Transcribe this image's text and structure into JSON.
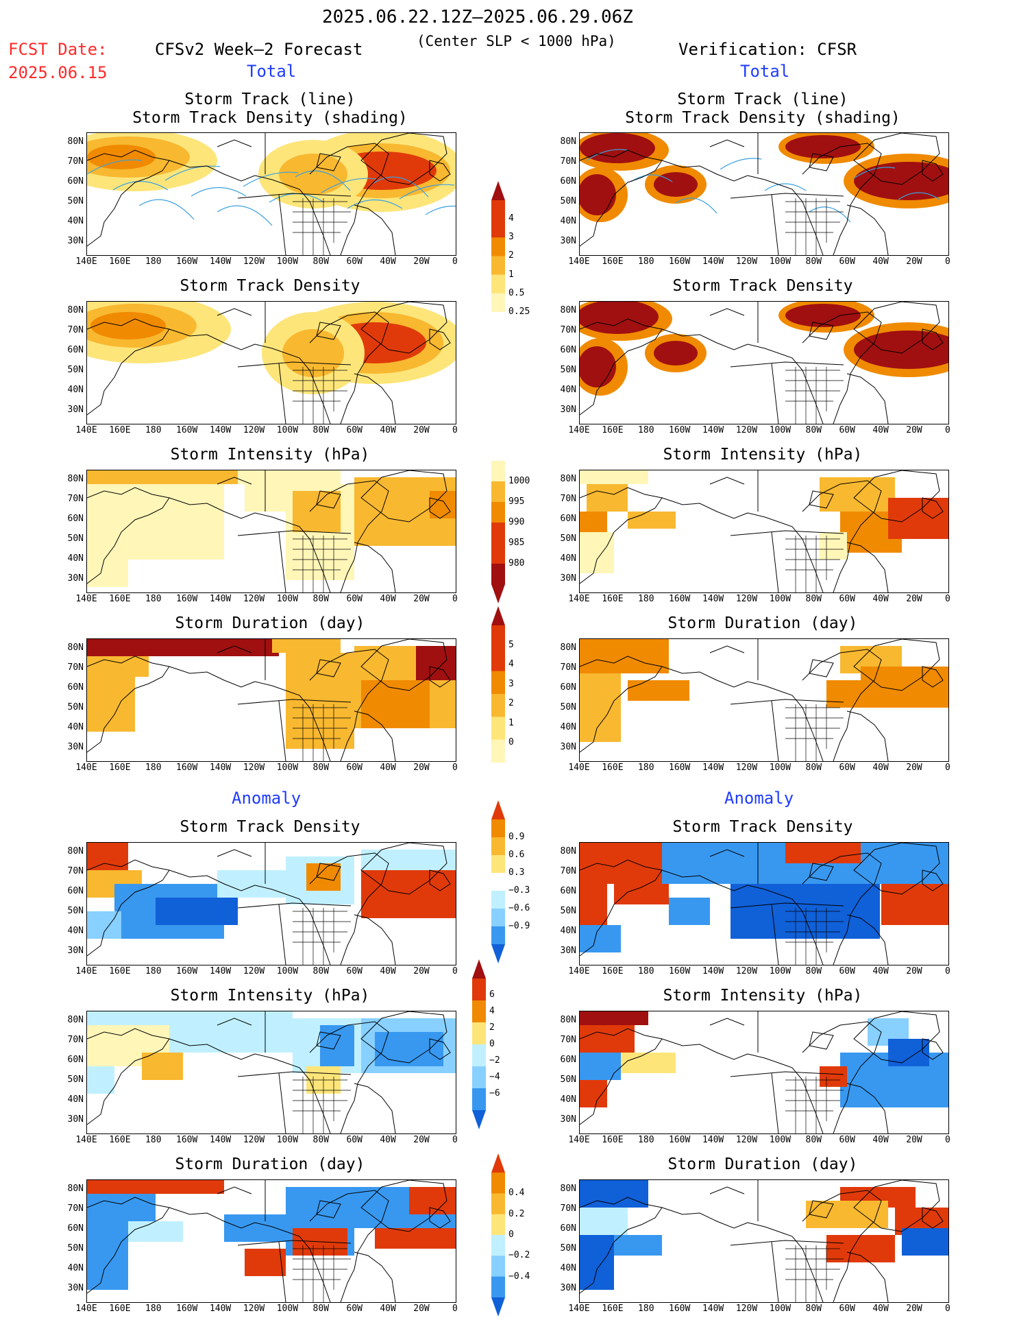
{
  "header": {
    "period": "2025.06.22.12Z–2025.06.29.06Z",
    "condition": "(Center SLP < 1000 hPa)",
    "fcst_label": "FCST Date:",
    "fcst_date": "2025.06.15",
    "model": "CFSv2 Week–2 Forecast",
    "verification": "Verification: CFSR",
    "total_label": "Total",
    "anomaly_label": "Anomaly"
  },
  "panel_titles": {
    "track_line": "Storm Track (line)",
    "track_density_shading": "Storm Track Density (shading)",
    "track_density": "Storm Track Density",
    "intensity": "Storm Intensity (hPa)",
    "duration": "Storm Duration (day)"
  },
  "lat_labels": [
    "80N",
    "70N",
    "60N",
    "50N",
    "40N",
    "30N"
  ],
  "lon_labels": [
    "140E",
    "160E",
    "180",
    "160W",
    "140W",
    "120W",
    "100W",
    "80W",
    "60W",
    "40W",
    "20W",
    "0"
  ],
  "colorbars": {
    "density": [
      "4",
      "3",
      "2",
      "1",
      "0.5",
      "0.25"
    ],
    "intensity": [
      "1000",
      "995",
      "990",
      "985",
      "980"
    ],
    "duration": [
      "5",
      "4",
      "3",
      "2",
      "1",
      "0"
    ],
    "density_anom": [
      "0.9",
      "0.6",
      "0.3",
      "−0.3",
      "−0.6",
      "−0.9"
    ],
    "intensity_anom": [
      "6",
      "4",
      "2",
      "0",
      "−2",
      "−4",
      "−6"
    ],
    "duration_anom": [
      "0.4",
      "0.2",
      "0",
      "−0.2",
      "−0.4"
    ]
  },
  "colors": {
    "dark_red": "#a01010",
    "red": "#e03a0a",
    "orange": "#f08a00",
    "light_orange": "#f8b830",
    "yellow": "#fde57a",
    "pale_yellow": "#fff6b8",
    "light_cyan": "#c0f0ff",
    "light_blue": "#88d0ff",
    "blue": "#3898f0",
    "dark_blue": "#1060d8",
    "track_line": "#3aa0e0"
  }
}
